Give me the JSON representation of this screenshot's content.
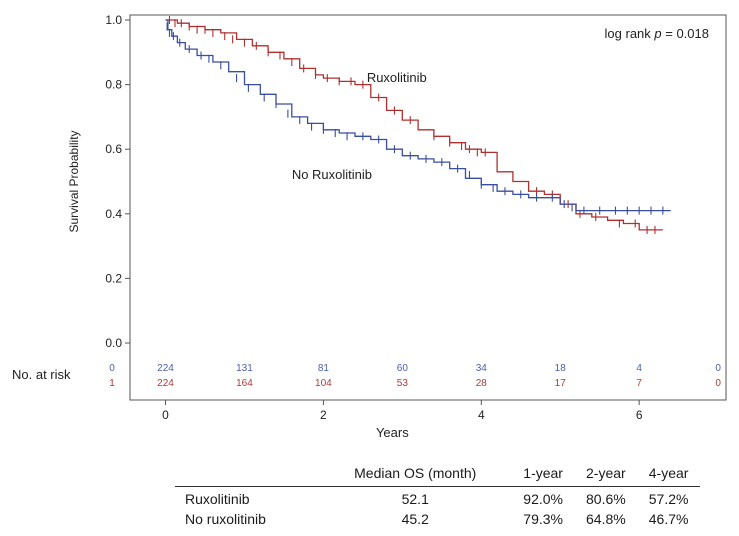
{
  "chart_data": {
    "type": "line",
    "annotation_prefix": "log rank ",
    "annotation_p": "p",
    "annotation_suffix": " = 0.018",
    "xlabel": "Years",
    "ylabel": "Survival Probability",
    "xlim": [
      -0.45,
      7.1
    ],
    "ylim": [
      0.0,
      1.0
    ],
    "xticks": [
      0,
      2,
      4,
      6
    ],
    "yticks": [
      0.0,
      0.2,
      0.4,
      0.6,
      0.8,
      1.0
    ],
    "ytick_labels": [
      "0.0",
      "0.2",
      "0.4",
      "0.6",
      "0.8",
      "1.0"
    ],
    "series": [
      {
        "name": "Ruxolitinib",
        "color": "#b03030",
        "x": [
          0,
          0.05,
          0.15,
          0.3,
          0.5,
          0.7,
          0.9,
          1.1,
          1.3,
          1.5,
          1.7,
          1.9,
          2.0,
          2.2,
          2.4,
          2.6,
          2.8,
          3.0,
          3.2,
          3.4,
          3.6,
          3.8,
          4.0,
          4.2,
          4.4,
          4.6,
          4.8,
          5.0,
          5.2,
          5.4,
          5.6,
          5.8,
          6.0,
          6.3
        ],
        "y": [
          1.0,
          1.0,
          0.99,
          0.98,
          0.97,
          0.96,
          0.94,
          0.92,
          0.9,
          0.88,
          0.85,
          0.83,
          0.82,
          0.81,
          0.8,
          0.76,
          0.72,
          0.69,
          0.66,
          0.64,
          0.62,
          0.6,
          0.59,
          0.53,
          0.5,
          0.47,
          0.46,
          0.43,
          0.4,
          0.39,
          0.38,
          0.37,
          0.35,
          0.35
        ],
        "censor_x": [
          0.05,
          0.12,
          0.2,
          0.3,
          0.4,
          0.5,
          0.6,
          0.75,
          0.85,
          1.0,
          1.15,
          1.3,
          1.45,
          1.6,
          1.75,
          1.9,
          2.05,
          2.2,
          2.35,
          2.5,
          2.7,
          2.9,
          3.1,
          3.4,
          3.6,
          3.75,
          3.85,
          3.95,
          4.05,
          4.7,
          4.9,
          5.1,
          5.25,
          5.45,
          5.75,
          5.95,
          6.1,
          6.2
        ],
        "censor_y": [
          1.0,
          0.99,
          0.99,
          0.98,
          0.97,
          0.97,
          0.96,
          0.95,
          0.94,
          0.93,
          0.92,
          0.9,
          0.89,
          0.87,
          0.85,
          0.83,
          0.82,
          0.81,
          0.81,
          0.8,
          0.76,
          0.72,
          0.69,
          0.64,
          0.62,
          0.61,
          0.6,
          0.59,
          0.59,
          0.47,
          0.46,
          0.43,
          0.4,
          0.39,
          0.37,
          0.37,
          0.35,
          0.35
        ],
        "label_x": 2.55,
        "label_y": 0.82
      },
      {
        "name": "No Ruxolitinib",
        "color": "#3a4ea0",
        "x": [
          0,
          0.03,
          0.08,
          0.15,
          0.25,
          0.4,
          0.6,
          0.8,
          1.0,
          1.2,
          1.4,
          1.6,
          1.8,
          2.0,
          2.2,
          2.4,
          2.6,
          2.8,
          3.0,
          3.2,
          3.4,
          3.6,
          3.8,
          4.0,
          4.2,
          4.4,
          4.6,
          4.8,
          5.0,
          5.2,
          5.5,
          6.0,
          6.4
        ],
        "y": [
          1.0,
          0.97,
          0.95,
          0.93,
          0.91,
          0.89,
          0.87,
          0.84,
          0.8,
          0.77,
          0.74,
          0.7,
          0.68,
          0.66,
          0.65,
          0.64,
          0.63,
          0.6,
          0.58,
          0.57,
          0.56,
          0.54,
          0.51,
          0.49,
          0.47,
          0.46,
          0.45,
          0.45,
          0.43,
          0.41,
          0.41,
          0.41,
          0.41
        ],
        "censor_x": [
          0.02,
          0.05,
          0.1,
          0.18,
          0.3,
          0.45,
          0.55,
          0.7,
          0.9,
          1.05,
          1.25,
          1.4,
          1.55,
          1.7,
          1.85,
          2.0,
          2.15,
          2.3,
          2.5,
          2.7,
          2.9,
          3.1,
          3.3,
          3.5,
          3.7,
          3.85,
          4.0,
          4.15,
          4.3,
          4.5,
          4.7,
          4.9,
          5.05,
          5.15,
          5.3,
          5.5,
          5.7,
          5.85,
          6.0,
          6.15,
          6.3
        ],
        "censor_y": [
          0.98,
          0.96,
          0.95,
          0.93,
          0.91,
          0.89,
          0.88,
          0.86,
          0.82,
          0.79,
          0.76,
          0.74,
          0.71,
          0.69,
          0.67,
          0.66,
          0.65,
          0.64,
          0.64,
          0.63,
          0.6,
          0.58,
          0.57,
          0.56,
          0.54,
          0.52,
          0.49,
          0.48,
          0.47,
          0.46,
          0.45,
          0.45,
          0.43,
          0.42,
          0.41,
          0.41,
          0.41,
          0.41,
          0.41,
          0.41,
          0.41
        ],
        "label_x": 1.6,
        "label_y": 0.52
      }
    ],
    "risk_table": {
      "title": "No. at risk",
      "times": [
        0,
        1,
        2,
        3,
        4,
        5,
        6,
        7
      ],
      "rows": [
        {
          "code": "0",
          "color": "#4a5fae",
          "counts": [
            "224",
            "131",
            "81",
            "60",
            "34",
            "18",
            "4",
            "0"
          ]
        },
        {
          "code": "1",
          "color": "#b03a3a",
          "counts": [
            "224",
            "164",
            "104",
            "53",
            "28",
            "17",
            "7",
            "0"
          ]
        }
      ]
    }
  },
  "summary_table": {
    "headers": [
      "",
      "Median OS (month)",
      "1-year",
      "2-year",
      "4-year"
    ],
    "rows": [
      {
        "label": "Ruxolitinib",
        "median_os": "52.1",
        "y1": "92.0%",
        "y2": "80.6%",
        "y4": "57.2%"
      },
      {
        "label": "No ruxolitinib",
        "median_os": "45.2",
        "y1": "79.3%",
        "y2": "64.8%",
        "y4": "46.7%"
      }
    ]
  }
}
